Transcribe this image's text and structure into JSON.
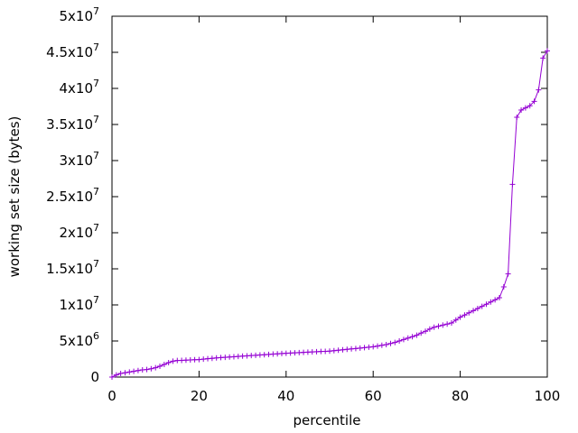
{
  "chart_data": {
    "type": "line",
    "xlabel": "percentile",
    "ylabel": "working set size (bytes)",
    "color": "#9400d3",
    "x": [
      0,
      1,
      2,
      3,
      4,
      5,
      6,
      7,
      8,
      9,
      10,
      11,
      12,
      13,
      14,
      15,
      16,
      17,
      18,
      19,
      20,
      21,
      22,
      23,
      24,
      25,
      26,
      27,
      28,
      29,
      30,
      31,
      32,
      33,
      34,
      35,
      36,
      37,
      38,
      39,
      40,
      41,
      42,
      43,
      44,
      45,
      46,
      47,
      48,
      49,
      50,
      51,
      52,
      53,
      54,
      55,
      56,
      57,
      58,
      59,
      60,
      61,
      62,
      63,
      64,
      65,
      66,
      67,
      68,
      69,
      70,
      71,
      72,
      73,
      74,
      75,
      76,
      77,
      78,
      79,
      80,
      81,
      82,
      83,
      84,
      85,
      86,
      87,
      88,
      89,
      90,
      91,
      92,
      93,
      94,
      95,
      96,
      97,
      98,
      99,
      100
    ],
    "values": [
      0,
      300000,
      500000,
      600000,
      700000,
      800000,
      900000,
      1000000,
      1050000,
      1150000,
      1300000,
      1500000,
      1750000,
      2000000,
      2200000,
      2300000,
      2320000,
      2350000,
      2370000,
      2400000,
      2420000,
      2480000,
      2540000,
      2600000,
      2650000,
      2700000,
      2740000,
      2780000,
      2820000,
      2860000,
      2900000,
      2940000,
      2980000,
      3020000,
      3060000,
      3100000,
      3140000,
      3180000,
      3220000,
      3260000,
      3300000,
      3330000,
      3360000,
      3390000,
      3420000,
      3450000,
      3480000,
      3510000,
      3540000,
      3570000,
      3600000,
      3660000,
      3720000,
      3780000,
      3840000,
      3900000,
      3960000,
      4020000,
      4080000,
      4140000,
      4200000,
      4300000,
      4400000,
      4500000,
      4650000,
      4800000,
      5000000,
      5200000,
      5400000,
      5600000,
      5800000,
      6100000,
      6350000,
      6650000,
      6900000,
      7050000,
      7200000,
      7350000,
      7500000,
      7900000,
      8300000,
      8600000,
      8900000,
      9200000,
      9500000,
      9800000,
      10100000,
      10400000,
      10700000,
      11000000,
      12500000,
      14300000,
      26700000,
      36000000,
      37000000,
      37300000,
      37600000,
      38200000,
      39800000,
      44200000,
      45200000
    ],
    "xlim": [
      0,
      100
    ],
    "xticks": [
      0,
      20,
      40,
      60,
      80,
      100
    ],
    "ylim": [
      0,
      50000000
    ],
    "yticks": [
      0,
      {
        "value": 5000000,
        "label": "5x10",
        "exponent": "6"
      },
      {
        "value": 10000000,
        "label": "1x10",
        "exponent": "7"
      },
      {
        "value": 15000000,
        "label": "1.5x10",
        "exponent": "7"
      },
      {
        "value": 20000000,
        "label": "2x10",
        "exponent": "7"
      },
      {
        "value": 25000000,
        "label": "2.5x10",
        "exponent": "7"
      },
      {
        "value": 30000000,
        "label": "3x10",
        "exponent": "7"
      },
      {
        "value": 35000000,
        "label": "3.5x10",
        "exponent": "7"
      },
      {
        "value": 40000000,
        "label": "4x10",
        "exponent": "7"
      },
      {
        "value": 45000000,
        "label": "4.5x10",
        "exponent": "7"
      },
      {
        "value": 50000000,
        "label": "5x10",
        "exponent": "7"
      }
    ]
  }
}
